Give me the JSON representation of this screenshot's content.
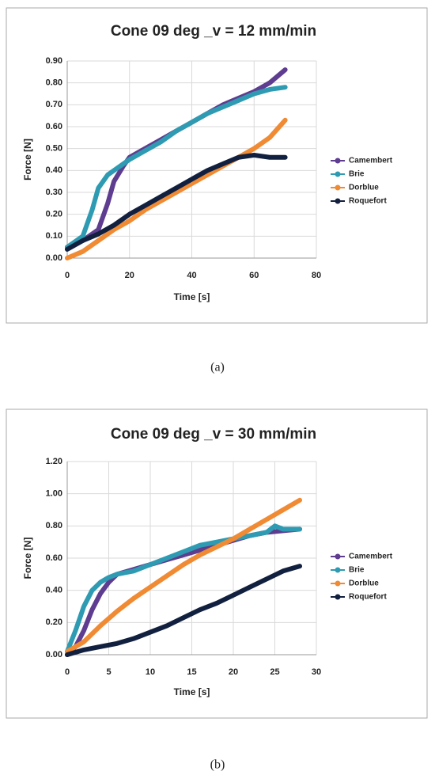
{
  "chart_data": [
    {
      "type": "line",
      "title": "Cone 09 deg _v = 12 mm/min",
      "caption": "(a)",
      "x_label": "Time [s]",
      "y_label": "Force [N]",
      "grid": true,
      "legend": "right",
      "xlim": [
        0,
        80
      ],
      "xticks": [
        0,
        20,
        40,
        60,
        80
      ],
      "ylim": [
        0,
        0.9
      ],
      "yticks": [
        {
          "value": 0,
          "label": "0.00"
        },
        {
          "value": 0.1,
          "label": "0.10"
        },
        {
          "value": 0.2,
          "label": "0.20"
        },
        {
          "value": 0.3,
          "label": "0.30"
        },
        {
          "value": 0.4,
          "label": "0.40"
        },
        {
          "value": 0.5,
          "label": "0.50"
        },
        {
          "value": 0.6,
          "label": "0.60"
        },
        {
          "value": 0.7,
          "label": "0.70"
        },
        {
          "value": 0.8,
          "label": "0.80"
        },
        {
          "value": 0.9,
          "label": "0.90"
        }
      ],
      "series": [
        {
          "name": "Camembert",
          "color": "#5e3c8f",
          "x": [
            0,
            5,
            10,
            13,
            15,
            18,
            20,
            25,
            30,
            35,
            40,
            45,
            50,
            55,
            60,
            65,
            70
          ],
          "values": [
            0.05,
            0.08,
            0.13,
            0.25,
            0.35,
            0.42,
            0.46,
            0.5,
            0.54,
            0.58,
            0.62,
            0.66,
            0.7,
            0.73,
            0.76,
            0.8,
            0.86
          ]
        },
        {
          "name": "Brie",
          "color": "#2e9bb2",
          "x": [
            0,
            5,
            8,
            10,
            13,
            15,
            20,
            25,
            30,
            35,
            40,
            45,
            50,
            55,
            60,
            65,
            70
          ],
          "values": [
            0.05,
            0.1,
            0.22,
            0.32,
            0.38,
            0.4,
            0.45,
            0.49,
            0.53,
            0.58,
            0.62,
            0.66,
            0.69,
            0.72,
            0.75,
            0.77,
            0.78
          ]
        },
        {
          "name": "Dorblue",
          "color": "#f08a33",
          "x": [
            0,
            5,
            10,
            15,
            20,
            25,
            30,
            35,
            40,
            45,
            50,
            55,
            60,
            65,
            70
          ],
          "values": [
            0,
            0.03,
            0.08,
            0.13,
            0.17,
            0.22,
            0.26,
            0.3,
            0.34,
            0.38,
            0.42,
            0.46,
            0.5,
            0.55,
            0.63
          ]
        },
        {
          "name": "Roquefort",
          "color": "#12203f",
          "x": [
            0,
            5,
            10,
            15,
            20,
            25,
            30,
            35,
            40,
            45,
            50,
            55,
            60,
            65,
            70
          ],
          "values": [
            0.04,
            0.08,
            0.11,
            0.15,
            0.2,
            0.24,
            0.28,
            0.32,
            0.36,
            0.4,
            0.43,
            0.46,
            0.47,
            0.46,
            0.46
          ]
        }
      ]
    },
    {
      "type": "line",
      "title": "Cone 09 deg _v = 30 mm/min",
      "caption": "(b)",
      "x_label": "Time [s]",
      "y_label": "Force [N]",
      "grid": true,
      "legend": "right",
      "xlim": [
        0,
        30
      ],
      "xticks": [
        0,
        5,
        10,
        15,
        20,
        25,
        30
      ],
      "ylim": [
        0,
        1.2
      ],
      "yticks": [
        {
          "value": 0,
          "label": "0.00"
        },
        {
          "value": 0.2,
          "label": "0.20"
        },
        {
          "value": 0.4,
          "label": "0.40"
        },
        {
          "value": 0.6,
          "label": "0.60"
        },
        {
          "value": 0.8,
          "label": "0.80"
        },
        {
          "value": 1,
          "label": "1.00"
        },
        {
          "value": 1.2,
          "label": "1.20"
        }
      ],
      "series": [
        {
          "name": "Camembert",
          "color": "#5e3c8f",
          "x": [
            0,
            1,
            2,
            3,
            4,
            5,
            6,
            8,
            10,
            12,
            14,
            16,
            18,
            20,
            22,
            24,
            26,
            28
          ],
          "values": [
            0,
            0.05,
            0.15,
            0.28,
            0.38,
            0.45,
            0.5,
            0.53,
            0.56,
            0.59,
            0.62,
            0.65,
            0.68,
            0.71,
            0.74,
            0.76,
            0.77,
            0.78
          ]
        },
        {
          "name": "Brie",
          "color": "#2e9bb2",
          "x": [
            0,
            1,
            2,
            3,
            4,
            5,
            6,
            8,
            10,
            12,
            14,
            16,
            18,
            20,
            22,
            24,
            25,
            26,
            28
          ],
          "values": [
            0.02,
            0.15,
            0.3,
            0.4,
            0.45,
            0.48,
            0.5,
            0.52,
            0.56,
            0.6,
            0.64,
            0.68,
            0.7,
            0.72,
            0.74,
            0.76,
            0.8,
            0.78,
            0.78
          ]
        },
        {
          "name": "Dorblue",
          "color": "#f08a33",
          "x": [
            0,
            2,
            4,
            6,
            8,
            10,
            12,
            14,
            16,
            18,
            20,
            22,
            24,
            26,
            28
          ],
          "values": [
            0.02,
            0.08,
            0.18,
            0.27,
            0.35,
            0.42,
            0.49,
            0.56,
            0.62,
            0.67,
            0.72,
            0.78,
            0.84,
            0.9,
            0.96
          ]
        },
        {
          "name": "Roquefort",
          "color": "#12203f",
          "x": [
            0,
            2,
            4,
            6,
            8,
            10,
            12,
            14,
            16,
            18,
            20,
            22,
            24,
            26,
            28
          ],
          "values": [
            0,
            0.03,
            0.05,
            0.07,
            0.1,
            0.14,
            0.18,
            0.23,
            0.28,
            0.32,
            0.37,
            0.42,
            0.47,
            0.52,
            0.55
          ]
        }
      ]
    }
  ]
}
